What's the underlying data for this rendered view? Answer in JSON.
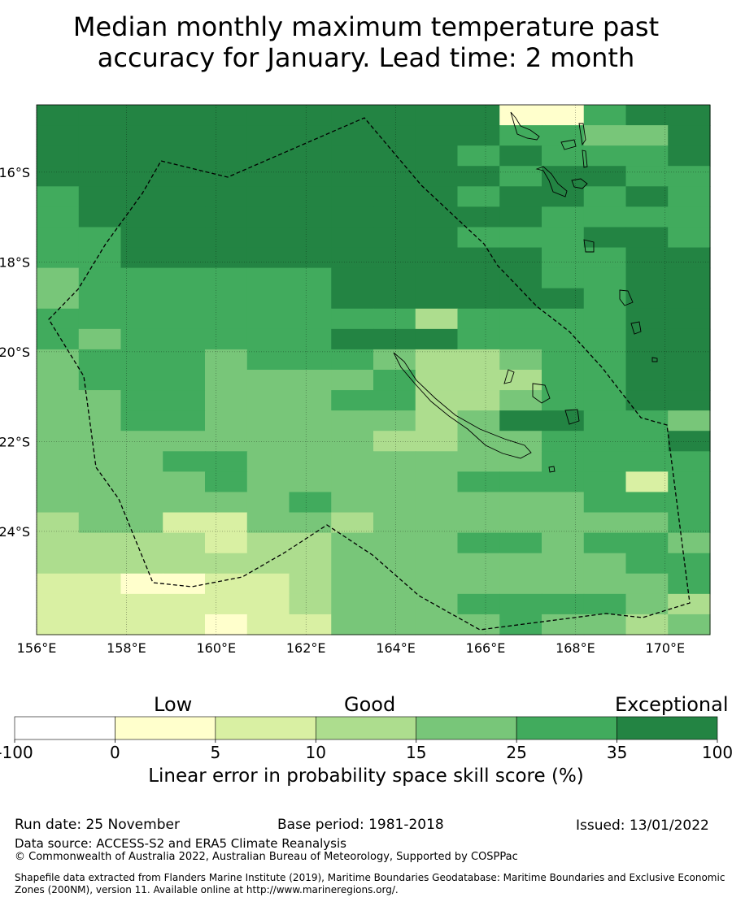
{
  "title_line1": "Median monthly maximum temperature past",
  "title_line2": "accuracy for January. Lead time: 2 month",
  "map": {
    "x_ticks": [
      "156°E",
      "158°E",
      "160°E",
      "162°E",
      "164°E",
      "166°E",
      "168°E",
      "170°E"
    ],
    "y_ticks": [
      "16°S",
      "18°S",
      "20°S",
      "22°S",
      "24°S"
    ],
    "lon_range": [
      156,
      171
    ],
    "lat_range": [
      -14.5,
      -26.3
    ],
    "grid": [
      "6666666666611566",
      "6666666666655446",
      "6666666666565556",
      "6666666666656655",
      "5666666666566565",
      "5666666666665555",
      "5566666666555665",
      "5566666666665566",
      "4555555666665566",
      "4555555666666566",
      "5555555553555566",
      "5455555666555566",
      "4555455543345566",
      "4555444453335566",
      "4455444553345566",
      "4455444443466554",
      "4444444433445556",
      "4445544444445555",
      "4444544444555525",
      "4444445444444555",
      "3442244344444445",
      "3333233444554554",
      "3333333444444455",
      "2211223444444445",
      "2222223444555543",
      "2222122444454434"
    ],
    "palette": {
      "0": "#ffffff",
      "1": "#ffffcc",
      "2": "#d9f0a3",
      "3": "#addd8e",
      "4": "#78c679",
      "5": "#41ab5d",
      "6": "#238443"
    }
  },
  "colorbar": {
    "categories": [
      "Low",
      "Good",
      "Exceptional"
    ],
    "ticks": [
      "-100",
      "0",
      "5",
      "10",
      "15",
      "25",
      "35",
      "100"
    ],
    "colors": [
      "#ffffff",
      "#ffffcc",
      "#d9f0a3",
      "#addd8e",
      "#78c679",
      "#41ab5d",
      "#238443"
    ],
    "label": "Linear error in probability space skill score (%)"
  },
  "footer": {
    "run_date": "Run date: 25 November",
    "base_period": "Base period: 1981-2018",
    "issued": "Issued: 13/01/2022",
    "data_source": "Data source: ACCESS-S2 and ERA5 Climate Reanalysis",
    "copyright": "© Commonwealth of Australia 2022, Australian Bureau of Meteorology, Supported by COSPPac",
    "shapefile_note": "Shapefile data extracted from Flanders Marine Institute (2019), Maritime Boundaries Geodatabase: Maritime Boundaries and Exclusive Economic Zones (200NM), version 11. Available online at http://www.marineregions.org/."
  }
}
